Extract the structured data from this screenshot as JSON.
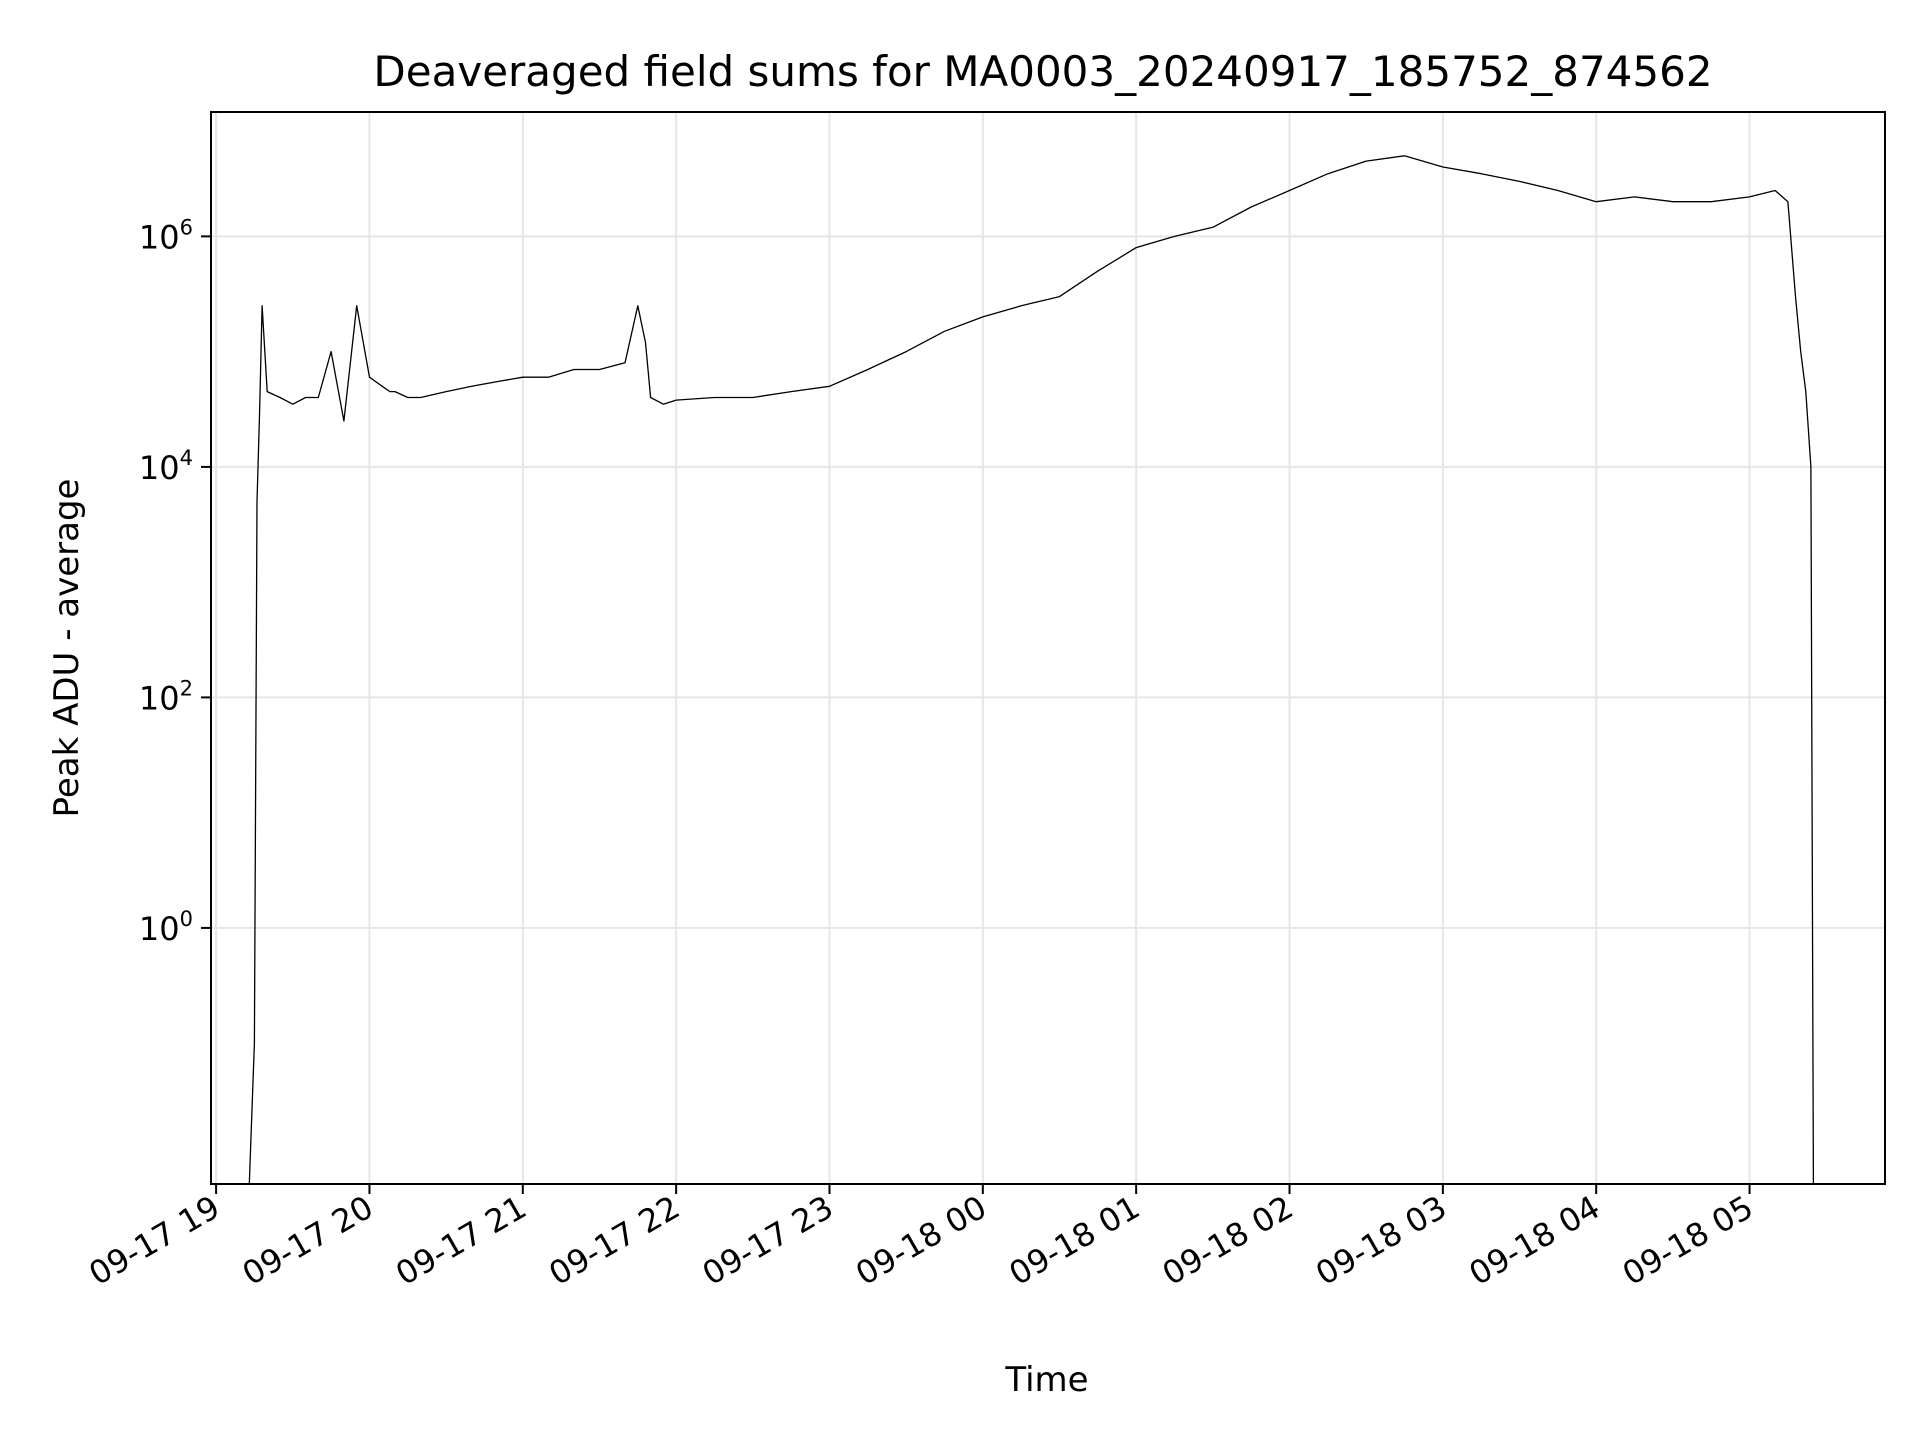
{
  "chart_data": {
    "type": "line",
    "title": "Deaveraged field sums for MA0003_20240917_185752_874562",
    "xlabel": "Time",
    "ylabel": "Peak ADU - average",
    "yscale": "log",
    "grid": true,
    "line_color": "#000000",
    "grid_color": "#e6e6e6",
    "x_tick_labels": [
      "09-17 19",
      "09-17 20",
      "09-17 21",
      "09-17 22",
      "09-17 23",
      "09-18 00",
      "09-18 01",
      "09-18 02",
      "09-18 03",
      "09-18 04",
      "09-18 05"
    ],
    "x_ticks": [
      "2024-09-17T19:00",
      "2024-09-17T20:00",
      "2024-09-17T21:00",
      "2024-09-17T22:00",
      "2024-09-17T23:00",
      "2024-09-18T00:00",
      "2024-09-18T01:00",
      "2024-09-18T02:00",
      "2024-09-18T03:00",
      "2024-09-18T04:00",
      "2024-09-18T05:00"
    ],
    "y_ticks": [
      {
        "value": 1,
        "base": "10",
        "exp": "0"
      },
      {
        "value": 100,
        "base": "10",
        "exp": "2"
      },
      {
        "value": 10000,
        "base": "10",
        "exp": "4"
      },
      {
        "value": 1000000,
        "base": "10",
        "exp": "6"
      }
    ],
    "xlim": [
      "2024-09-17T18:58",
      "2024-09-18T05:53"
    ],
    "ylim": [
      0.006,
      12000000
    ],
    "series": [
      {
        "x": [
          "2024-09-17T19:13",
          "2024-09-17T19:15",
          "2024-09-17T19:16",
          "2024-09-17T19:17",
          "2024-09-17T19:18",
          "2024-09-17T19:20",
          "2024-09-17T19:25",
          "2024-09-17T19:30",
          "2024-09-17T19:35",
          "2024-09-17T19:40",
          "2024-09-17T19:45",
          "2024-09-17T19:50",
          "2024-09-17T19:55",
          "2024-09-17T20:00",
          "2024-09-17T20:05",
          "2024-09-17T20:08",
          "2024-09-17T20:10",
          "2024-09-17T20:15",
          "2024-09-17T20:20",
          "2024-09-17T20:30",
          "2024-09-17T20:40",
          "2024-09-17T20:50",
          "2024-09-17T21:00",
          "2024-09-17T21:10",
          "2024-09-17T21:20",
          "2024-09-17T21:30",
          "2024-09-17T21:40",
          "2024-09-17T21:45",
          "2024-09-17T21:48",
          "2024-09-17T21:50",
          "2024-09-17T21:55",
          "2024-09-17T22:00",
          "2024-09-17T22:15",
          "2024-09-17T22:30",
          "2024-09-17T22:45",
          "2024-09-17T23:00",
          "2024-09-17T23:15",
          "2024-09-17T23:30",
          "2024-09-17T23:45",
          "2024-09-18T00:00",
          "2024-09-18T00:15",
          "2024-09-18T00:30",
          "2024-09-18T00:45",
          "2024-09-18T01:00",
          "2024-09-18T01:15",
          "2024-09-18T01:30",
          "2024-09-18T01:45",
          "2024-09-18T02:00",
          "2024-09-18T02:15",
          "2024-09-18T02:30",
          "2024-09-18T02:45",
          "2024-09-18T03:00",
          "2024-09-18T03:15",
          "2024-09-18T03:30",
          "2024-09-18T03:45",
          "2024-09-18T04:00",
          "2024-09-18T04:15",
          "2024-09-18T04:30",
          "2024-09-18T04:45",
          "2024-09-18T05:00",
          "2024-09-18T05:10",
          "2024-09-18T05:15",
          "2024-09-18T05:18",
          "2024-09-18T05:20",
          "2024-09-18T05:22",
          "2024-09-18T05:24",
          "2024-09-18T05:25"
        ],
        "y": [
          0.006,
          0.1,
          5000,
          30000,
          250000,
          45000,
          40000,
          35000,
          40000,
          40000,
          100000,
          25000,
          250000,
          60000,
          50000,
          45000,
          45000,
          40000,
          40000,
          45000,
          50000,
          55000,
          60000,
          60000,
          70000,
          70000,
          80000,
          250000,
          120000,
          40000,
          35000,
          38000,
          40000,
          40000,
          45000,
          50000,
          70000,
          100000,
          150000,
          200000,
          250000,
          300000,
          500000,
          800000,
          1000000,
          1200000,
          1800000,
          2500000,
          3500000,
          4500000,
          5000000,
          4000000,
          3500000,
          3000000,
          2500000,
          2000000,
          2200000,
          2000000,
          2000000,
          2200000,
          2500000,
          2000000,
          300000,
          100000,
          45000,
          10000,
          0.006
        ]
      }
    ]
  }
}
